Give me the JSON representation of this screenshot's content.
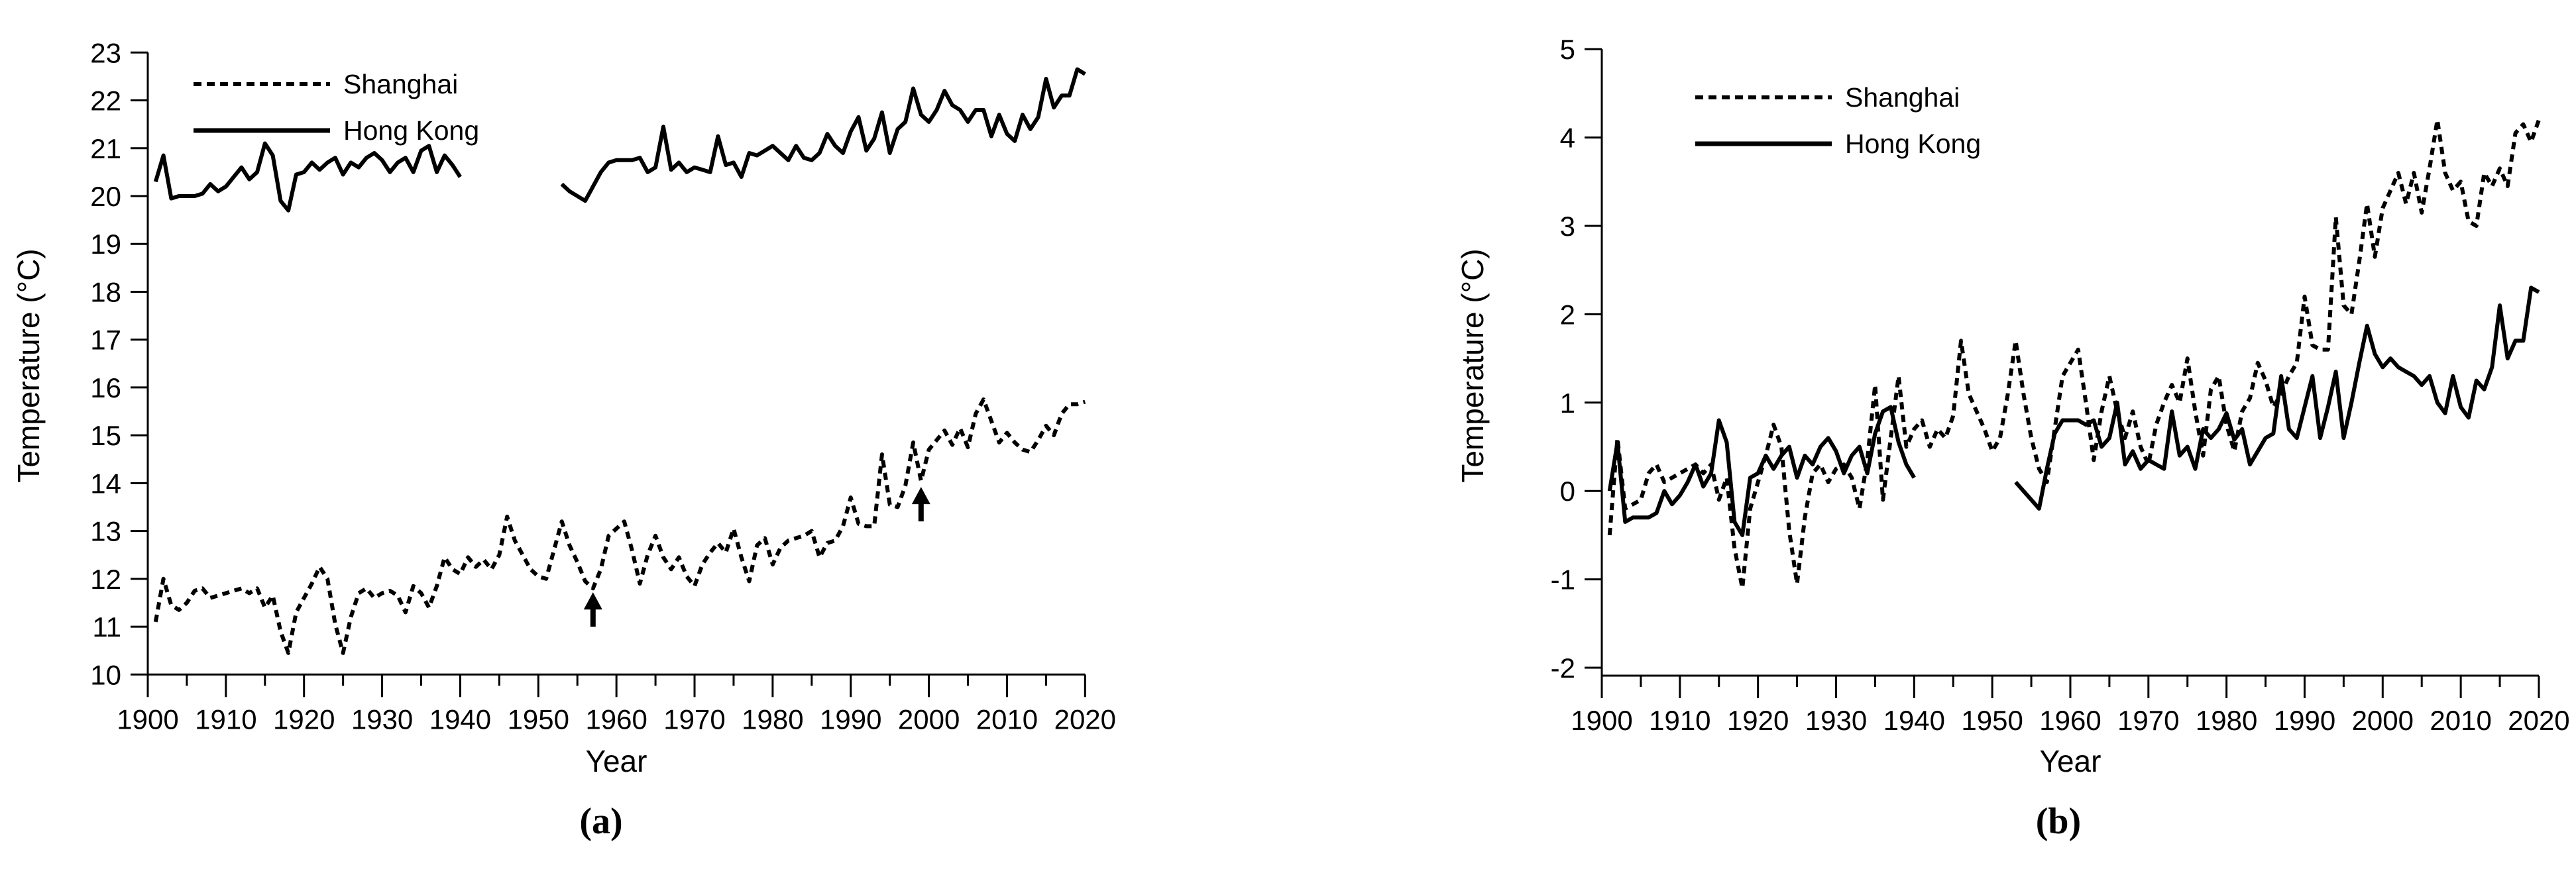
{
  "figure": {
    "background": "#ffffff",
    "ink_color": "#000000"
  },
  "chart_data": [
    {
      "id": "a",
      "type": "line",
      "caption": "(a)",
      "xlabel": "Year",
      "ylabel": "Temperature (°C)",
      "x_years": "annual, 1901-2020, Hong Kong gap 1941-1952",
      "years_start": 1901,
      "years_end": 2020,
      "xlim": [
        1900,
        2020
      ],
      "ylim": [
        10,
        23
      ],
      "yticks": [
        "10",
        "11",
        "12",
        "13",
        "14",
        "15",
        "16",
        "17",
        "18",
        "19",
        "20",
        "21",
        "22",
        "23"
      ],
      "ytick_values": [
        10,
        11,
        12,
        13,
        14,
        15,
        16,
        17,
        18,
        19,
        20,
        21,
        22,
        23
      ],
      "xticks": [
        "1900",
        "1910",
        "1920",
        "1930",
        "1940",
        "1950",
        "1960",
        "1970",
        "1980",
        "1990",
        "2000",
        "2010",
        "2020"
      ],
      "xtick_values": [
        1900,
        1910,
        1920,
        1930,
        1940,
        1950,
        1960,
        1970,
        1980,
        1990,
        2000,
        2010,
        2020
      ],
      "xticks_minor": [
        1905,
        1915,
        1925,
        1935,
        1945,
        1955,
        1965,
        1975,
        1985,
        1995,
        2005,
        2015
      ],
      "grid": false,
      "legend_position": "top-left-inside",
      "annotations": [
        {
          "type": "up-arrow",
          "year": 1957,
          "v_tip": 11.72,
          "v_tail": 11.0
        },
        {
          "type": "up-arrow",
          "year": 1999,
          "v_tip": 13.92,
          "v_tail": 13.2
        }
      ],
      "series": [
        {
          "name": "Shanghai",
          "style": "dashed",
          "values": [
            11.1,
            12.0,
            11.45,
            11.35,
            11.5,
            11.75,
            11.8,
            11.6,
            11.65,
            11.7,
            11.75,
            11.8,
            11.7,
            11.8,
            11.4,
            11.65,
            10.9,
            10.45,
            11.3,
            11.6,
            11.9,
            12.25,
            12.0,
            11.05,
            10.45,
            11.2,
            11.7,
            11.8,
            11.6,
            11.7,
            11.75,
            11.65,
            11.3,
            11.85,
            11.7,
            11.4,
            11.85,
            12.45,
            12.2,
            12.1,
            12.45,
            12.25,
            12.4,
            12.2,
            12.5,
            13.3,
            12.8,
            12.5,
            12.2,
            12.05,
            12.0,
            12.6,
            13.2,
            12.7,
            12.35,
            11.95,
            11.8,
            12.2,
            12.9,
            13.05,
            13.2,
            12.6,
            11.9,
            12.5,
            12.9,
            12.45,
            12.2,
            12.45,
            12.05,
            11.85,
            12.3,
            12.55,
            12.75,
            12.55,
            13.05,
            12.45,
            11.95,
            12.7,
            12.85,
            12.3,
            12.65,
            12.8,
            12.85,
            12.9,
            13.0,
            12.45,
            12.75,
            12.8,
            13.1,
            13.7,
            13.15,
            13.1,
            13.1,
            14.6,
            13.55,
            13.5,
            13.95,
            14.85,
            14.05,
            14.7,
            14.9,
            15.1,
            14.8,
            15.15,
            14.75,
            15.45,
            15.75,
            15.3,
            14.85,
            15.05,
            14.85,
            14.7,
            14.65,
            14.9,
            15.2,
            15.0,
            15.45,
            15.65,
            15.65,
            15.7
          ]
        },
        {
          "name": "Hong Kong",
          "style": "solid",
          "values": [
            20.3,
            20.85,
            19.95,
            20.0,
            20.0,
            20.0,
            20.05,
            20.25,
            20.1,
            20.2,
            20.4,
            20.6,
            20.35,
            20.5,
            21.1,
            20.85,
            19.9,
            19.7,
            20.45,
            20.5,
            20.7,
            20.55,
            20.7,
            20.8,
            20.45,
            20.7,
            20.6,
            20.8,
            20.9,
            20.75,
            20.5,
            20.7,
            20.8,
            20.5,
            20.95,
            21.05,
            20.5,
            20.85,
            20.65,
            20.4,
            null,
            null,
            null,
            null,
            null,
            null,
            null,
            null,
            null,
            null,
            null,
            null,
            20.25,
            20.1,
            20.0,
            19.9,
            20.2,
            20.5,
            20.7,
            20.75,
            20.75,
            20.75,
            20.8,
            20.5,
            20.6,
            21.45,
            20.55,
            20.7,
            20.5,
            20.6,
            20.55,
            20.5,
            21.25,
            20.65,
            20.7,
            20.4,
            20.9,
            20.85,
            20.95,
            21.05,
            20.9,
            20.75,
            21.05,
            20.8,
            20.75,
            20.9,
            21.3,
            21.05,
            20.9,
            21.35,
            21.65,
            20.95,
            21.2,
            21.75,
            20.9,
            21.4,
            21.55,
            22.25,
            21.7,
            21.55,
            21.8,
            22.2,
            21.9,
            21.8,
            21.55,
            21.8,
            21.8,
            21.25,
            21.7,
            21.3,
            21.15,
            21.7,
            21.4,
            21.65,
            22.45,
            21.85,
            22.1,
            22.1,
            22.65,
            22.55
          ]
        }
      ]
    },
    {
      "id": "b",
      "type": "line",
      "caption": "(b)",
      "xlabel": "Year",
      "ylabel": "Temperature (°C)",
      "x_years": "annual anomaly, 1901-2020, Hong Kong gap 1941-1952",
      "years_start": 1901,
      "years_end": 2020,
      "xlim": [
        1900,
        2020
      ],
      "ylim": [
        -2,
        5
      ],
      "yticks": [
        "-2",
        "-1",
        "0",
        "1",
        "2",
        "3",
        "4",
        "5"
      ],
      "ytick_values": [
        -2,
        -1,
        0,
        1,
        2,
        3,
        4,
        5
      ],
      "xticks": [
        "1900",
        "1910",
        "1920",
        "1930",
        "1940",
        "1950",
        "1960",
        "1970",
        "1980",
        "1990",
        "2000",
        "2010",
        "2020"
      ],
      "xtick_values": [
        1900,
        1910,
        1920,
        1930,
        1940,
        1950,
        1960,
        1970,
        1980,
        1990,
        2000,
        2010,
        2020
      ],
      "xticks_minor": [
        1905,
        1915,
        1925,
        1935,
        1945,
        1955,
        1965,
        1975,
        1985,
        1995,
        2005,
        2015
      ],
      "grid": false,
      "legend_position": "top-left-inside",
      "annotations": [],
      "series": [
        {
          "name": "Shanghai",
          "style": "dashed",
          "values": [
            -0.5,
            0.6,
            -0.2,
            -0.15,
            -0.1,
            0.2,
            0.3,
            0.1,
            0.15,
            0.2,
            0.25,
            0.3,
            0.2,
            0.3,
            -0.1,
            0.15,
            -0.65,
            -1.1,
            -0.2,
            0.1,
            0.4,
            0.75,
            0.5,
            -0.45,
            -1.05,
            -0.3,
            0.2,
            0.3,
            0.1,
            0.25,
            0.3,
            0.15,
            -0.2,
            0.35,
            1.2,
            -0.1,
            0.6,
            1.3,
            0.5,
            0.7,
            0.8,
            0.5,
            0.7,
            0.6,
            0.85,
            1.7,
            1.1,
            0.9,
            0.7,
            0.45,
            0.6,
            1.1,
            1.7,
            1.1,
            0.6,
            0.25,
            0.1,
            0.7,
            1.3,
            1.45,
            1.6,
            1.0,
            0.35,
            0.9,
            1.3,
            0.9,
            0.6,
            0.9,
            0.5,
            0.3,
            0.75,
            1.0,
            1.2,
            1.0,
            1.5,
            0.9,
            0.4,
            1.15,
            1.3,
            0.75,
            0.45,
            0.9,
            1.05,
            1.45,
            1.25,
            0.95,
            1.1,
            1.3,
            1.45,
            2.2,
            1.65,
            1.6,
            1.6,
            3.1,
            2.1,
            2.0,
            2.6,
            3.25,
            2.65,
            3.2,
            3.4,
            3.6,
            3.25,
            3.6,
            3.15,
            3.65,
            4.2,
            3.6,
            3.4,
            3.5,
            3.05,
            3.0,
            3.6,
            3.45,
            3.65,
            3.45,
            4.05,
            4.15,
            3.95,
            4.2
          ]
        },
        {
          "name": "Hong Kong",
          "style": "solid",
          "values": [
            0.0,
            0.55,
            -0.35,
            -0.3,
            -0.3,
            -0.3,
            -0.25,
            0.0,
            -0.15,
            -0.05,
            0.1,
            0.3,
            0.05,
            0.2,
            0.8,
            0.55,
            -0.35,
            -0.5,
            0.15,
            0.2,
            0.4,
            0.25,
            0.4,
            0.5,
            0.15,
            0.4,
            0.3,
            0.5,
            0.6,
            0.45,
            0.2,
            0.4,
            0.5,
            0.2,
            0.65,
            0.9,
            0.95,
            0.55,
            0.3,
            0.15,
            null,
            null,
            null,
            null,
            null,
            null,
            null,
            null,
            null,
            null,
            null,
            null,
            0.1,
            0.0,
            -0.1,
            -0.2,
            0.25,
            0.65,
            0.8,
            0.8,
            0.8,
            0.75,
            0.8,
            0.5,
            0.6,
            1.0,
            0.3,
            0.45,
            0.25,
            0.35,
            0.3,
            0.25,
            0.9,
            0.4,
            0.5,
            0.25,
            0.7,
            0.6,
            0.7,
            0.88,
            0.58,
            0.7,
            0.3,
            0.45,
            0.6,
            0.65,
            1.3,
            0.7,
            0.6,
            0.95,
            1.3,
            0.6,
            0.95,
            1.35,
            0.6,
            1.0,
            1.45,
            1.87,
            1.55,
            1.4,
            1.5,
            1.4,
            1.35,
            1.3,
            1.2,
            1.3,
            1.0,
            0.88,
            1.3,
            0.95,
            0.83,
            1.25,
            1.15,
            1.4,
            2.1,
            1.5,
            1.7,
            1.7,
            2.3,
            2.25
          ]
        }
      ]
    }
  ]
}
